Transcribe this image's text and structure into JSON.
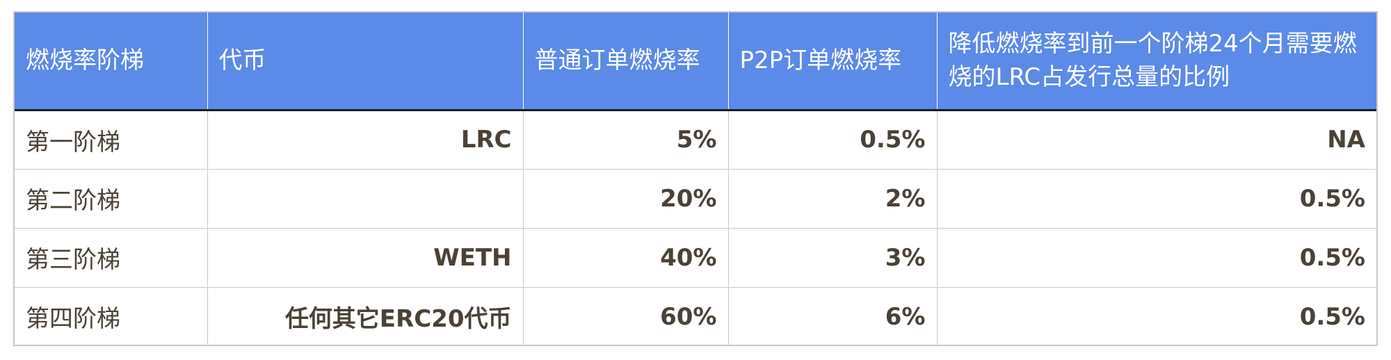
{
  "table": {
    "headers": [
      "燃烧率阶梯",
      "代币",
      "普通订单燃烧率",
      "P2P订单燃烧率",
      "降低燃烧率到前一个阶梯24个月需要燃烧的LRC占发行总量的比例"
    ],
    "rows": [
      {
        "tier": "第一阶梯",
        "token": "LRC",
        "normal_rate": "5%",
        "p2p_rate": "0.5%",
        "ratio": "NA"
      },
      {
        "tier": "第二阶梯",
        "token": "",
        "normal_rate": "20%",
        "p2p_rate": "2%",
        "ratio": "0.5%"
      },
      {
        "tier": "第三阶梯",
        "token": "WETH",
        "normal_rate": "40%",
        "p2p_rate": "3%",
        "ratio": "0.5%"
      },
      {
        "tier": "第四阶梯",
        "token": "任何其它ERC20代币",
        "normal_rate": "60%",
        "p2p_rate": "6%",
        "ratio": "0.5%"
      }
    ]
  },
  "colors": {
    "header_bg": "#5b8ae8",
    "header_text": "#ffffff",
    "body_text": "#4a4236",
    "grid": "#c9c9c9",
    "header_rule": "#1c1c1c"
  }
}
